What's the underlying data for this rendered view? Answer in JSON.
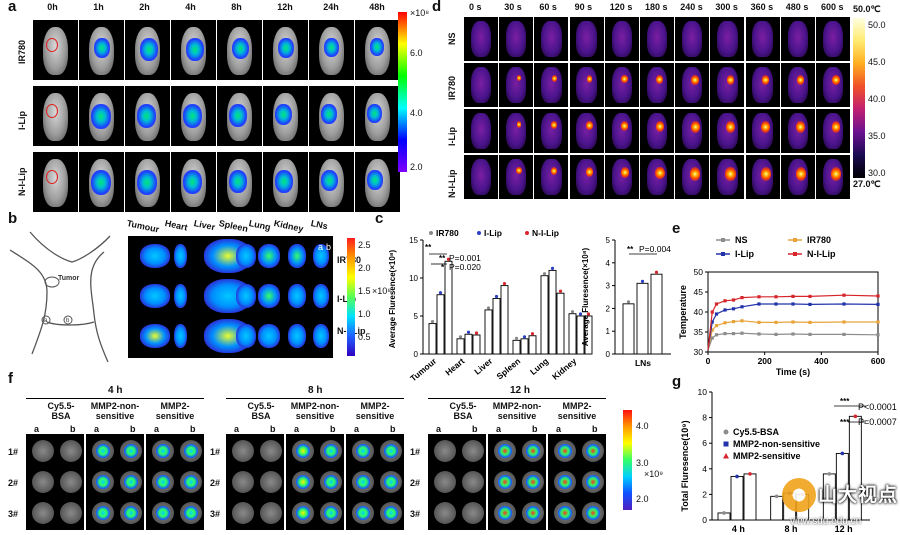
{
  "panel_letters": {
    "a": "a",
    "b": "b",
    "c": "c",
    "d": "d",
    "e": "e",
    "f": "f",
    "g": "g"
  },
  "panel_a": {
    "timepoints": [
      "0h",
      "1h",
      "2h",
      "4h",
      "8h",
      "12h",
      "24h",
      "48h"
    ],
    "rows": [
      "IR780",
      "I-Lip",
      "N-I-Lip"
    ],
    "colorbar": {
      "unit": "×10⁸",
      "ticks": [
        "6.0",
        "4.0",
        "2.0"
      ],
      "colors": [
        "#ff0000",
        "#ffff00",
        "#00ff00",
        "#00ffff",
        "#0000ff",
        "#8000ff"
      ]
    }
  },
  "panel_b": {
    "tumor_label": "Tumor",
    "site_labels": [
      "a",
      "b"
    ],
    "organs": [
      "Tumour",
      "Heart",
      "Liver",
      "Spleen",
      "Lung",
      "Kidney",
      "LNs"
    ],
    "rows": [
      "IR780",
      "I-Lip",
      "N-I-Lip"
    ],
    "inset_labels": [
      "a",
      "b"
    ],
    "colorbar": {
      "unit": "×10⁸",
      "ticks": [
        "2.5",
        "2.0",
        "1.5",
        "1.0",
        "0.5"
      ]
    }
  },
  "panel_c": {
    "legend": [
      "IR780",
      "I-Lip",
      "N-I-Lip"
    ],
    "ylabel": "Average Fluresence(×10⁸)",
    "ylabel_right": "Average Fluresence(×10⁸)",
    "significance": [
      {
        "mark": "**",
        "label": ""
      },
      {
        "mark": "**",
        "label": "P=0.001"
      },
      {
        "mark": "*",
        "label": "P=0.020"
      }
    ],
    "significance_right": {
      "mark": "**",
      "label": "P=0.004"
    }
  },
  "panel_d": {
    "timepoints": [
      "0 s",
      "30 s",
      "60 s",
      "90 s",
      "120 s",
      "180 s",
      "240 s",
      "300 s",
      "360 s",
      "480 s",
      "600 s"
    ],
    "rows": [
      "NS",
      "IR780",
      "I-Lip",
      "N-I-Lip"
    ],
    "colorbar": {
      "top": "50.0℃",
      "bottom": "27.0℃",
      "ticks": [
        "50.0",
        "45.0",
        "40.0",
        "35.0",
        "30.0"
      ]
    }
  },
  "panel_f": {
    "timepoints": [
      "4 h",
      "8 h",
      "12 h"
    ],
    "groups": [
      "Cy5.5-\nBSA",
      "MMP2-non-\nsensitive",
      "MMP2-\nsensitive"
    ],
    "group_labels": [
      [
        "Cy5.5-",
        "BSA"
      ],
      [
        "MMP2-non-",
        "sensitive"
      ],
      [
        "MMP2-",
        "sensitive"
      ]
    ],
    "sites": [
      "a",
      "b"
    ],
    "rows": [
      "1#",
      "2#",
      "3#"
    ],
    "colorbar": {
      "unit": "×10⁹",
      "ticks": [
        "4.0",
        "3.0",
        "2.0"
      ]
    }
  },
  "watermark": {
    "text": "山大视点",
    "url": "view.sdu.edu.cn"
  },
  "chart_data": [
    {
      "id": "c-left",
      "type": "bar",
      "categories": [
        "Tumour",
        "Heart",
        "Liver",
        "Spleen",
        "Lung",
        "Kidney"
      ],
      "series": [
        {
          "name": "IR780",
          "values": [
            4.0,
            2.0,
            5.8,
            1.8,
            10.3,
            5.3
          ],
          "color": "#888888"
        },
        {
          "name": "I-Lip",
          "values": [
            7.8,
            2.6,
            7.3,
            2.0,
            11.0,
            5.0
          ],
          "color": "#2a3fc1"
        },
        {
          "name": "N-I-Lip",
          "values": [
            12.2,
            2.5,
            9.0,
            2.4,
            8.0,
            5.0
          ],
          "color": "#d7262b"
        }
      ],
      "ylabel": "Average Fluresence(×10⁸)",
      "ylim": [
        0,
        15
      ],
      "yticks": [
        0,
        5,
        10,
        15
      ]
    },
    {
      "id": "c-right",
      "type": "bar",
      "categories": [
        "LNs"
      ],
      "series": [
        {
          "name": "IR780",
          "values": [
            2.2
          ]
        },
        {
          "name": "I-Lip",
          "values": [
            3.1
          ]
        },
        {
          "name": "N-I-Lip",
          "values": [
            3.5
          ]
        }
      ],
      "ylim": [
        0,
        5
      ],
      "yticks": [
        0,
        1,
        2,
        3,
        4,
        5
      ]
    },
    {
      "id": "e",
      "type": "line",
      "xlabel": "Time (s)",
      "ylabel": "Temperature",
      "xlim": [
        0,
        600
      ],
      "ylim": [
        30,
        50
      ],
      "xticks": [
        0,
        200,
        400,
        600
      ],
      "yticks": [
        30,
        35,
        40,
        45,
        50
      ],
      "x": [
        0,
        15,
        30,
        60,
        90,
        120,
        180,
        240,
        300,
        360,
        480,
        600
      ],
      "series": [
        {
          "name": "NS",
          "color": "#8c8c8c",
          "values": [
            30.5,
            33.5,
            34.3,
            34.6,
            34.6,
            34.7,
            34.5,
            34.4,
            34.5,
            34.4,
            34.4,
            34.3
          ]
        },
        {
          "name": "IR780",
          "color": "#e8a33a",
          "values": [
            30.5,
            35.5,
            36.6,
            37.3,
            37.6,
            37.8,
            37.4,
            37.4,
            37.5,
            37.4,
            37.5,
            37.5
          ]
        },
        {
          "name": "I-Lip",
          "color": "#2233aa",
          "values": [
            30.5,
            37.5,
            39.5,
            40.5,
            40.8,
            41.3,
            42.0,
            42.0,
            42.0,
            41.9,
            42.0,
            41.9
          ]
        },
        {
          "name": "N-I-Lip",
          "color": "#d7262b",
          "values": [
            30.5,
            40.0,
            42.0,
            42.8,
            43.0,
            43.6,
            43.8,
            43.8,
            43.9,
            43.9,
            44.2,
            44.0
          ]
        }
      ]
    },
    {
      "id": "g",
      "type": "bar",
      "categories": [
        "4 h",
        "8 h",
        "12 h"
      ],
      "series": [
        {
          "name": "Cy5.5-BSA",
          "values": [
            0.55,
            1.85,
            3.6
          ],
          "color": "#8c8c8c"
        },
        {
          "name": "MMP2-non-sensitive",
          "values": [
            3.4,
            2.1,
            5.2
          ],
          "color": "#2233aa"
        },
        {
          "name": "MMP2-sensitive",
          "values": [
            3.6,
            2.0,
            8.1
          ],
          "color": "#d7262b"
        }
      ],
      "ylabel": "Total Fluresence(10⁹)",
      "ylim": [
        0,
        10
      ],
      "yticks": [
        0,
        2,
        4,
        6,
        8,
        10
      ],
      "significance": [
        {
          "mark": "***",
          "label": "P<0.0001"
        },
        {
          "mark": "***",
          "label": "P=0.0007"
        }
      ]
    }
  ]
}
